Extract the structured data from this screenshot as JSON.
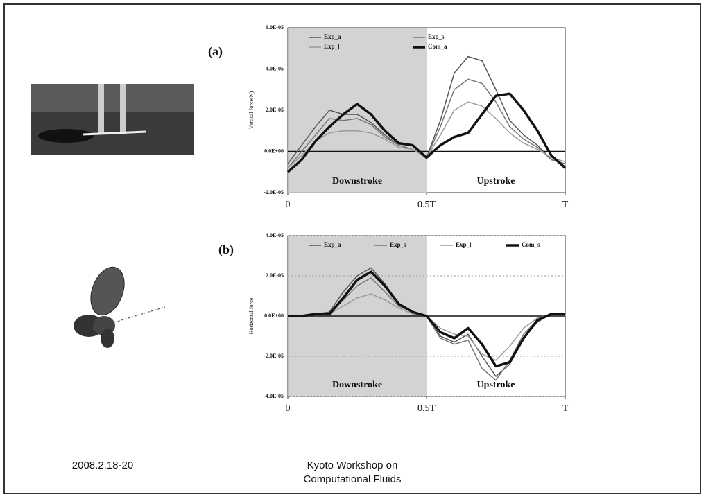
{
  "chart_data": [
    {
      "type": "line",
      "label": "(a)",
      "ylabel": "Vertical force(N)",
      "x": [
        0,
        0.05,
        0.1,
        0.15,
        0.2,
        0.25,
        0.3,
        0.35,
        0.4,
        0.45,
        0.5,
        0.55,
        0.6,
        0.65,
        0.7,
        0.75,
        0.8,
        0.85,
        0.9,
        0.95,
        1
      ],
      "xlim": [
        0,
        1
      ],
      "xticks": [
        {
          "value": 0,
          "label": "0"
        },
        {
          "value": 0.5,
          "label": "0.5T"
        },
        {
          "value": 1,
          "label": "T"
        }
      ],
      "ylim": [
        -2e-05,
        6e-05
      ],
      "yticks": [
        {
          "value": -2e-05,
          "label": "-2.0E-05"
        },
        {
          "value": 0,
          "label": "0.0E+00"
        },
        {
          "value": 2e-05,
          "label": "2.0E-05"
        },
        {
          "value": 4e-05,
          "label": "4.0E-05"
        },
        {
          "value": 6e-05,
          "label": "6.0E-05"
        }
      ],
      "grid": false,
      "series": [
        {
          "name": "Exp_a",
          "color": "#555555",
          "values": [
            -6e-06,
            3e-06,
            1.2e-05,
            2e-05,
            1.8e-05,
            1.8e-05,
            1.4e-05,
            8e-06,
            3e-06,
            1e-06,
            -3e-06,
            1.5e-05,
            3.8e-05,
            4.6e-05,
            4.4e-05,
            3e-05,
            1.5e-05,
            8e-06,
            3e-06,
            -4e-06,
            -6e-06
          ]
        },
        {
          "name": "Exp_s",
          "color": "#777777",
          "values": [
            -8e-06,
            0,
            8e-06,
            1.6e-05,
            1.5e-05,
            1.6e-05,
            1.3e-05,
            7e-06,
            3e-06,
            1e-06,
            -3e-06,
            1.2e-05,
            3e-05,
            3.5e-05,
            3.3e-05,
            2.4e-05,
            1.2e-05,
            6e-06,
            2e-06,
            -4e-06,
            -6e-06
          ]
        },
        {
          "name": "Exp_l",
          "color": "#9a9a9a",
          "values": [
            -8e-06,
            -2e-06,
            5e-06,
            9e-06,
            1e-05,
            1e-05,
            9e-06,
            6e-06,
            2e-06,
            1e-06,
            -3e-06,
            8e-06,
            2e-05,
            2.4e-05,
            2.2e-05,
            1.6e-05,
            9e-06,
            4e-06,
            1e-06,
            -3e-06,
            -5e-06
          ]
        },
        {
          "name": "Com_a",
          "color": "#111111",
          "values": [
            -1e-05,
            -4e-06,
            5e-06,
            1.2e-05,
            1.8e-05,
            2.3e-05,
            1.8e-05,
            1e-05,
            4e-06,
            3e-06,
            -3e-06,
            3e-06,
            7e-06,
            9e-06,
            1.8e-05,
            2.7e-05,
            2.8e-05,
            2e-05,
            1e-05,
            -2e-06,
            -8e-06
          ]
        }
      ],
      "annotations": [
        "Downstroke",
        "Upstroke"
      ]
    },
    {
      "type": "line",
      "label": "(b)",
      "ylabel": "Horizontal force",
      "x": [
        0,
        0.05,
        0.1,
        0.15,
        0.2,
        0.25,
        0.3,
        0.35,
        0.4,
        0.45,
        0.5,
        0.55,
        0.6,
        0.65,
        0.7,
        0.75,
        0.8,
        0.85,
        0.9,
        0.95,
        1
      ],
      "xlim": [
        0,
        1
      ],
      "xticks": [
        {
          "value": 0,
          "label": "0"
        },
        {
          "value": 0.5,
          "label": "0.5T"
        },
        {
          "value": 1,
          "label": "T"
        }
      ],
      "ylim": [
        -4e-05,
        4e-05
      ],
      "yticks": [
        {
          "value": -4e-05,
          "label": "-4.0E-05"
        },
        {
          "value": -2e-05,
          "label": "-2.0E-05"
        },
        {
          "value": 0,
          "label": "0.0E+00"
        },
        {
          "value": 2e-05,
          "label": "2.0E-05"
        },
        {
          "value": 4e-05,
          "label": "4.0E-05"
        }
      ],
      "grid": true,
      "series": [
        {
          "name": "Exp_a",
          "color": "#555555",
          "values": [
            0,
            0,
            1e-06,
            2e-06,
            1.2e-05,
            2e-05,
            2.4e-05,
            1.6e-05,
            6e-06,
            2e-06,
            0,
            -1e-05,
            -1.3e-05,
            -9e-06,
            -2e-05,
            -3e-05,
            -2.4e-05,
            -1.1e-05,
            -3e-06,
            1e-06,
            1e-06
          ]
        },
        {
          "name": "Exp_s",
          "color": "#777777",
          "values": [
            0,
            0,
            1e-06,
            1e-06,
            8e-06,
            1.5e-05,
            1.9e-05,
            1.2e-05,
            5e-06,
            2e-06,
            0,
            -1.1e-05,
            -1.4e-05,
            -1.2e-05,
            -2.6e-05,
            -3.2e-05,
            -2.2e-05,
            -9e-06,
            -2e-06,
            1e-06,
            1e-06
          ]
        },
        {
          "name": "Exp_l",
          "color": "#9a9a9a",
          "values": [
            0,
            0,
            1e-06,
            1e-06,
            5e-06,
            9e-06,
            1.1e-05,
            8e-06,
            4e-06,
            1e-06,
            0,
            -6e-06,
            -9e-06,
            -1e-05,
            -1.9e-05,
            -2.2e-05,
            -1.5e-05,
            -6e-06,
            -1e-06,
            1e-06,
            1e-06
          ]
        },
        {
          "name": "Com_s",
          "color": "#111111",
          "values": [
            0,
            0,
            1e-06,
            1e-06,
            9e-06,
            1.8e-05,
            2.2e-05,
            1.5e-05,
            6e-06,
            2e-06,
            0,
            -8e-06,
            -1.1e-05,
            -6e-06,
            -1.4e-05,
            -2.5e-05,
            -2.3e-05,
            -1.1e-05,
            -2e-06,
            1e-06,
            1e-06
          ]
        }
      ],
      "annotations": [
        "Downstroke",
        "Upstroke"
      ]
    }
  ],
  "footer": {
    "date": "2008.2.18-20",
    "event": [
      "Kyoto Workshop on",
      "Computational Fluids"
    ]
  }
}
